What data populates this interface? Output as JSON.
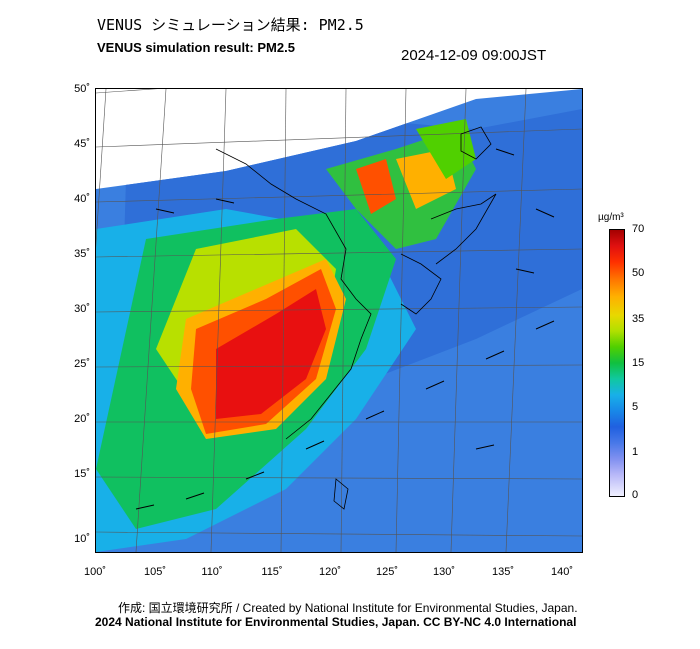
{
  "title_jp": "VENUS シミュレーション結果: PM2.5",
  "title_en": "VENUS simulation result: PM2.5",
  "timestamp": "2024-12-09 09:00JST",
  "axes": {
    "lat_ticks": [
      "50˚",
      "45˚",
      "40˚",
      "35˚",
      "30˚",
      "25˚",
      "20˚",
      "15˚",
      "10˚"
    ],
    "lon_ticks": [
      "100˚",
      "105˚",
      "110˚",
      "115˚",
      "120˚",
      "125˚",
      "130˚",
      "135˚",
      "140˚"
    ]
  },
  "colorbar": {
    "unit": "µg/m³",
    "labels": [
      "70",
      "50",
      "35",
      "15",
      "5",
      "1",
      "0"
    ]
  },
  "credit": {
    "line1": "作成: 国立環境研究所 / Created by National Institute for Environmental Studies, Japan.",
    "line2": "2024 National Institute for Environmental Studies, Japan. CC BY-NC 4.0 International"
  }
}
